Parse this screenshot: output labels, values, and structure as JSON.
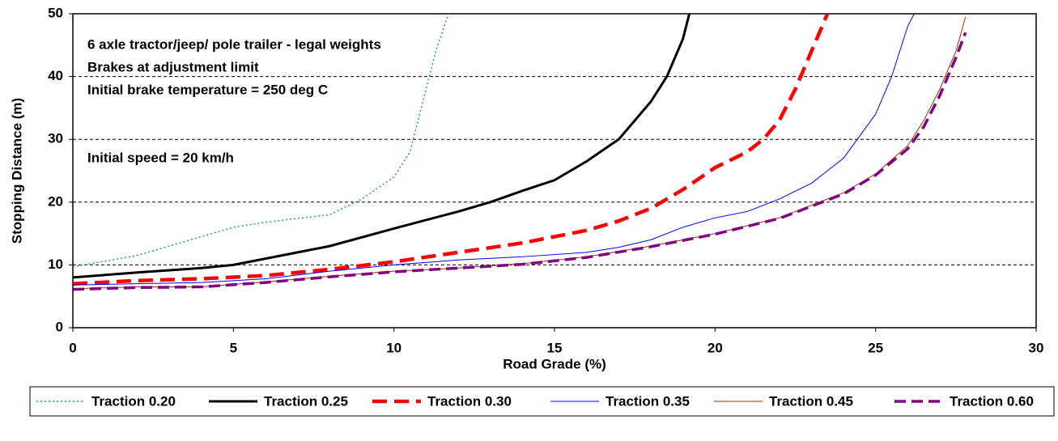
{
  "chart_data": {
    "type": "line",
    "x_label": "Road Grade (%)",
    "y_label": "Stopping Distance (m)",
    "annotations": [
      "6 axle tractor/jeep/ pole trailer - legal weights",
      "Brakes at adjustment limit",
      "Initial brake temperature = 250 deg C",
      "Initial speed = 20 km/h"
    ],
    "xlim": [
      0,
      30
    ],
    "xticks": [
      0,
      5,
      10,
      15,
      20,
      25,
      30
    ],
    "ylim": [
      0,
      50
    ],
    "yticks": [
      0,
      10,
      20,
      30,
      40,
      50
    ],
    "grid": true,
    "legend": "bottom",
    "series": [
      {
        "name": "Traction 0.20",
        "color": "#339966",
        "line_style": "dotted",
        "width": 1.5,
        "x": [
          0,
          2,
          4,
          5,
          6,
          8,
          9,
          10,
          10.5,
          11,
          11.3,
          11.7
        ],
        "values": [
          9.7,
          11.5,
          14.5,
          16,
          16.8,
          18,
          20.5,
          24,
          28,
          38,
          44,
          50
        ]
      },
      {
        "name": "Traction 0.25",
        "color": "#000000",
        "line_style": "solid",
        "width": 3,
        "x": [
          0,
          2,
          4,
          5,
          6,
          8,
          10,
          12,
          13,
          14,
          15,
          16,
          17,
          18,
          18.5,
          19,
          19.2
        ],
        "values": [
          8,
          8.8,
          9.5,
          10,
          11,
          13,
          15.8,
          18.5,
          20,
          21.8,
          23.5,
          26.5,
          30,
          36,
          40,
          46,
          50
        ]
      },
      {
        "name": "Traction 0.30",
        "color": "#ff0000",
        "line_style": "dashed",
        "width": 4.5,
        "x": [
          0,
          2,
          4,
          6,
          8,
          10,
          12,
          14,
          16,
          17,
          18,
          19,
          20,
          21,
          21.5,
          22,
          22.5,
          23,
          23.5
        ],
        "values": [
          7,
          7.5,
          7.8,
          8.3,
          9.3,
          10.5,
          12,
          13.5,
          15.5,
          17,
          19,
          22,
          25.5,
          28,
          30,
          33,
          38,
          44,
          50
        ]
      },
      {
        "name": "Traction 0.35",
        "color": "#0000ff",
        "line_style": "solid",
        "width": 1,
        "x": [
          0,
          2,
          4,
          6,
          8,
          10,
          12,
          14,
          16,
          17,
          18,
          19,
          20,
          21,
          22,
          23,
          24,
          25,
          25.5,
          26,
          26.2
        ],
        "values": [
          6.8,
          7,
          7.2,
          7.8,
          9,
          10,
          10.8,
          11.3,
          12,
          12.8,
          14,
          16,
          17.5,
          18.5,
          20.5,
          23,
          27,
          34,
          40,
          48,
          50
        ]
      },
      {
        "name": "Traction 0.45",
        "color": "#993300",
        "line_style": "solid",
        "width": 1,
        "x": [
          0,
          2,
          4,
          6,
          8,
          10,
          12,
          14,
          16,
          18,
          20,
          22,
          24,
          25,
          26,
          26.5,
          27,
          27.5,
          27.8
        ],
        "values": [
          6.2,
          6.5,
          6.5,
          7.3,
          8.2,
          9,
          9.5,
          10.2,
          11.3,
          13,
          15,
          17.5,
          21.5,
          24.5,
          29,
          33,
          38,
          44,
          49.5
        ]
      },
      {
        "name": "Traction 0.60",
        "color": "#800080",
        "line_style": "dashed",
        "width": 3.5,
        "x": [
          0,
          2,
          4,
          6,
          8,
          10,
          12,
          14,
          16,
          18,
          20,
          22,
          24,
          25,
          26,
          26.5,
          27,
          27.5,
          27.8
        ],
        "values": [
          6.1,
          6.4,
          6.5,
          7.2,
          8.1,
          8.9,
          9.5,
          10.1,
          11.2,
          12.9,
          14.9,
          17.4,
          21.3,
          24.3,
          28.5,
          32,
          37,
          43,
          47
        ]
      }
    ]
  }
}
